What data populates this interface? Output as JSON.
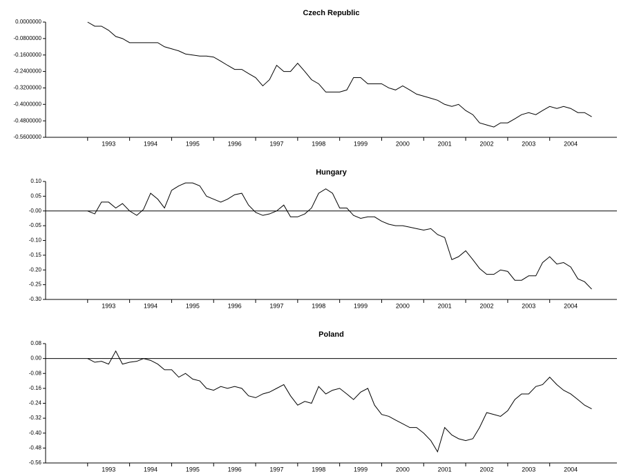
{
  "chart_data": [
    {
      "type": "line",
      "title": "Czech Republic",
      "color": "#000000",
      "x": [
        1993,
        1993.17,
        1993.33,
        1993.5,
        1993.67,
        1993.83,
        1994,
        1994.17,
        1994.33,
        1994.5,
        1994.67,
        1994.83,
        1995,
        1995.17,
        1995.33,
        1995.5,
        1995.67,
        1995.83,
        1996,
        1996.17,
        1996.33,
        1996.5,
        1996.67,
        1996.83,
        1997,
        1997.17,
        1997.33,
        1997.5,
        1997.67,
        1997.83,
        1998,
        1998.17,
        1998.33,
        1998.5,
        1998.67,
        1998.83,
        1999,
        1999.17,
        1999.33,
        1999.5,
        1999.67,
        1999.83,
        2000,
        2000.17,
        2000.33,
        2000.5,
        2000.67,
        2000.83,
        2001,
        2001.17,
        2001.33,
        2001.5,
        2001.67,
        2001.83,
        2002,
        2002.17,
        2002.33,
        2002.5,
        2002.67,
        2002.83,
        2003,
        2003.17,
        2003.33,
        2003.5,
        2003.67,
        2003.83,
        2004,
        2004.17,
        2004.33,
        2004.5,
        2004.67,
        2004.83,
        2005
      ],
      "values": [
        0.0,
        -0.02,
        -0.02,
        -0.04,
        -0.07,
        -0.08,
        -0.1,
        -0.1,
        -0.1,
        -0.1,
        -0.1,
        -0.12,
        -0.13,
        -0.14,
        -0.155,
        -0.16,
        -0.165,
        -0.165,
        -0.17,
        -0.19,
        -0.21,
        -0.23,
        -0.23,
        -0.25,
        -0.27,
        -0.31,
        -0.28,
        -0.21,
        -0.24,
        -0.24,
        -0.2,
        -0.24,
        -0.28,
        -0.3,
        -0.34,
        -0.34,
        -0.34,
        -0.33,
        -0.27,
        -0.27,
        -0.3,
        -0.3,
        -0.3,
        -0.32,
        -0.33,
        -0.31,
        -0.33,
        -0.35,
        -0.36,
        -0.37,
        -0.38,
        -0.4,
        -0.41,
        -0.4,
        -0.43,
        -0.45,
        -0.49,
        -0.5,
        -0.51,
        -0.49,
        -0.49,
        -0.47,
        -0.45,
        -0.44,
        -0.45,
        -0.43,
        -0.41,
        -0.42,
        -0.41,
        -0.42,
        -0.44,
        -0.44,
        -0.46
      ],
      "xlim": [
        1992,
        2005.6
      ],
      "xticks": [
        1993,
        1994,
        1995,
        1996,
        1997,
        1998,
        1999,
        2000,
        2001,
        2002,
        2003,
        2004
      ],
      "ylim": [
        -0.56,
        0
      ],
      "yticks": [
        {
          "value": 0,
          "label": "0.0000000"
        },
        {
          "value": -0.08,
          "label": "-0.0800000"
        },
        {
          "value": -0.16,
          "label": "-0.1600000"
        },
        {
          "value": -0.24,
          "label": "-0.2400000"
        },
        {
          "value": -0.32,
          "label": "-0.3200000"
        },
        {
          "value": -0.4,
          "label": "-0.4000000"
        },
        {
          "value": -0.48,
          "label": "-0.4800000"
        },
        {
          "value": -0.56,
          "label": "-0.5600000"
        }
      ],
      "zero_line": false
    },
    {
      "type": "line",
      "title": "Hungary",
      "color": "#000000",
      "x": [
        1993,
        1993.17,
        1993.33,
        1993.5,
        1993.67,
        1993.83,
        1994,
        1994.17,
        1994.33,
        1994.5,
        1994.67,
        1994.83,
        1995,
        1995.17,
        1995.33,
        1995.5,
        1995.67,
        1995.83,
        1996,
        1996.17,
        1996.33,
        1996.5,
        1996.67,
        1996.83,
        1997,
        1997.17,
        1997.33,
        1997.5,
        1997.67,
        1997.83,
        1998,
        1998.17,
        1998.33,
        1998.5,
        1998.67,
        1998.83,
        1999,
        1999.17,
        1999.33,
        1999.5,
        1999.67,
        1999.83,
        2000,
        2000.17,
        2000.33,
        2000.5,
        2000.67,
        2000.83,
        2001,
        2001.17,
        2001.33,
        2001.5,
        2001.67,
        2001.83,
        2002,
        2002.17,
        2002.33,
        2002.5,
        2002.67,
        2002.83,
        2003,
        2003.17,
        2003.33,
        2003.5,
        2003.67,
        2003.83,
        2004,
        2004.17,
        2004.33,
        2004.5,
        2004.67,
        2004.83,
        2005
      ],
      "values": [
        0.0,
        -0.01,
        0.03,
        0.03,
        0.01,
        0.025,
        0.0,
        -0.015,
        0.005,
        0.06,
        0.04,
        0.01,
        0.07,
        0.085,
        0.095,
        0.095,
        0.085,
        0.05,
        0.04,
        0.03,
        0.04,
        0.055,
        0.06,
        0.02,
        -0.005,
        -0.015,
        -0.01,
        0.0,
        0.02,
        -0.02,
        -0.02,
        -0.01,
        0.01,
        0.06,
        0.075,
        0.06,
        0.01,
        0.01,
        -0.015,
        -0.025,
        -0.02,
        -0.02,
        -0.035,
        -0.045,
        -0.05,
        -0.05,
        -0.055,
        -0.06,
        -0.065,
        -0.06,
        -0.08,
        -0.09,
        -0.165,
        -0.155,
        -0.135,
        -0.165,
        -0.195,
        -0.215,
        -0.215,
        -0.2,
        -0.205,
        -0.235,
        -0.235,
        -0.22,
        -0.22,
        -0.175,
        -0.155,
        -0.18,
        -0.175,
        -0.19,
        -0.23,
        -0.24,
        -0.265
      ],
      "xlim": [
        1992,
        2005.6
      ],
      "xticks": [
        1993,
        1994,
        1995,
        1996,
        1997,
        1998,
        1999,
        2000,
        2001,
        2002,
        2003,
        2004
      ],
      "ylim": [
        -0.3,
        0.1
      ],
      "yticks": [
        {
          "value": 0.1,
          "label": "0.10"
        },
        0.05,
        {
          "value": 0,
          "label": "-0.00"
        },
        -0.05,
        {
          "value": -0.1,
          "label": "-0.10"
        },
        -0.15,
        {
          "value": -0.2,
          "label": "-0.20"
        },
        -0.25,
        {
          "value": -0.3,
          "label": "-0.30"
        }
      ],
      "zero_line": true
    },
    {
      "type": "line",
      "title": "Poland",
      "color": "#000000",
      "x": [
        1993,
        1993.17,
        1993.33,
        1993.5,
        1993.67,
        1993.83,
        1994,
        1994.17,
        1994.33,
        1994.5,
        1994.67,
        1994.83,
        1995,
        1995.17,
        1995.33,
        1995.5,
        1995.67,
        1995.83,
        1996,
        1996.17,
        1996.33,
        1996.5,
        1996.67,
        1996.83,
        1997,
        1997.17,
        1997.33,
        1997.5,
        1997.67,
        1997.83,
        1998,
        1998.17,
        1998.33,
        1998.5,
        1998.67,
        1998.83,
        1999,
        1999.17,
        1999.33,
        1999.5,
        1999.67,
        1999.83,
        2000,
        2000.17,
        2000.33,
        2000.5,
        2000.67,
        2000.83,
        2001,
        2001.17,
        2001.33,
        2001.5,
        2001.67,
        2001.83,
        2002,
        2002.17,
        2002.33,
        2002.5,
        2002.67,
        2002.83,
        2003,
        2003.17,
        2003.33,
        2003.5,
        2003.67,
        2003.83,
        2004,
        2004.17,
        2004.33,
        2004.5,
        2004.67,
        2004.83,
        2005
      ],
      "values": [
        0.0,
        -0.02,
        -0.015,
        -0.03,
        0.04,
        -0.03,
        -0.02,
        -0.015,
        0.0,
        -0.01,
        -0.03,
        -0.06,
        -0.06,
        -0.1,
        -0.08,
        -0.11,
        -0.12,
        -0.16,
        -0.17,
        -0.15,
        -0.16,
        -0.15,
        -0.16,
        -0.2,
        -0.21,
        -0.19,
        -0.18,
        -0.16,
        -0.14,
        -0.2,
        -0.25,
        -0.23,
        -0.24,
        -0.15,
        -0.19,
        -0.17,
        -0.16,
        -0.19,
        -0.22,
        -0.18,
        -0.16,
        -0.25,
        -0.3,
        -0.31,
        -0.33,
        -0.35,
        -0.37,
        -0.37,
        -0.4,
        -0.44,
        -0.5,
        -0.37,
        -0.41,
        -0.43,
        -0.44,
        -0.43,
        -0.37,
        -0.29,
        -0.3,
        -0.31,
        -0.28,
        -0.22,
        -0.19,
        -0.19,
        -0.15,
        -0.14,
        -0.1,
        -0.14,
        -0.17,
        -0.19,
        -0.22,
        -0.25,
        -0.27
      ],
      "xlim": [
        1992,
        2005.6
      ],
      "xticks": [
        1993,
        1994,
        1995,
        1996,
        1997,
        1998,
        1999,
        2000,
        2001,
        2002,
        2003,
        2004
      ],
      "ylim": [
        -0.56,
        0.08
      ],
      "yticks": [
        0.08,
        {
          "value": 0,
          "label": "0.00"
        },
        -0.08,
        -0.16,
        -0.24,
        -0.32,
        {
          "value": -0.4,
          "label": "-0.40"
        },
        -0.48,
        -0.56
      ],
      "zero_line": true
    }
  ]
}
